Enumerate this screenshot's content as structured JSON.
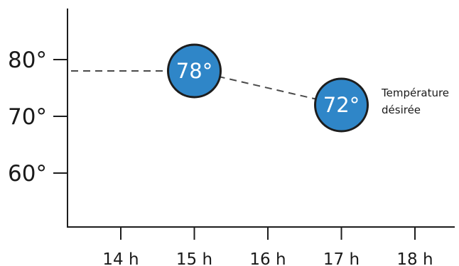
{
  "chart_data": {
    "type": "line",
    "x_categories": [
      "14 h",
      "15 h",
      "16 h",
      "17 h",
      "18 h"
    ],
    "y_ticks": [
      {
        "value": 60,
        "label": "60°"
      },
      {
        "value": 70,
        "label": "70°"
      },
      {
        "value": 80,
        "label": "80°"
      }
    ],
    "ylim": [
      50.5,
      89
    ],
    "series": [
      {
        "points": [
          {
            "x": "14 h",
            "y": 78,
            "origin_from_y_axis": true
          },
          {
            "x": "15 h",
            "y": 78,
            "label": "78°"
          },
          {
            "x": "17 h",
            "y": 72,
            "label": "72°"
          }
        ]
      }
    ],
    "annotation": {
      "line1": "Température",
      "line2": "désirée"
    },
    "grid": false,
    "colors": {
      "bubble_fill": "#2f86c8",
      "bubble_stroke": "#1d1d1d",
      "line": "#4a4a4a",
      "axis": "#1d1d1d"
    }
  }
}
